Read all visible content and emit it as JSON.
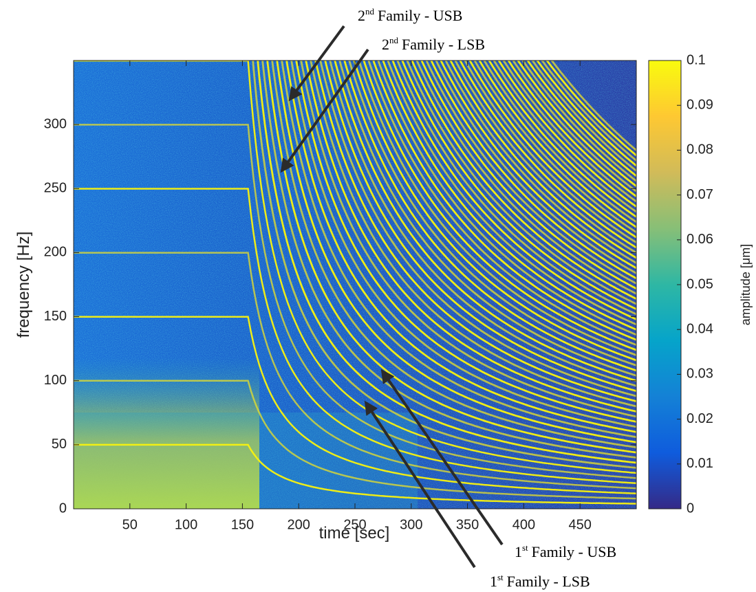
{
  "chart_data": {
    "type": "spectrogram",
    "xlabel": "time [sec]",
    "ylabel": "frequency [Hz]",
    "xlim": [
      0,
      500
    ],
    "ylim": [
      0,
      350
    ],
    "xticks": [
      50,
      100,
      150,
      200,
      250,
      300,
      350,
      400,
      450
    ],
    "yticks": [
      0,
      50,
      100,
      150,
      200,
      250,
      300
    ],
    "grid": false,
    "colorbar": {
      "label": "amplitude [μm]",
      "lim": [
        0,
        0.1
      ],
      "ticks": [
        0,
        0.01,
        0.02,
        0.03,
        0.04,
        0.05,
        0.06,
        0.07,
        0.08,
        0.09,
        0.1
      ],
      "colormap": [
        "#352a87",
        "#0f5cdd",
        "#1481d6",
        "#06a4ca",
        "#2eb7a4",
        "#87bf77",
        "#d1bb59",
        "#fec832",
        "#f9fb0e"
      ]
    },
    "annotations": [
      {
        "ordinal": "2",
        "suffix": "nd",
        "text": "Family - USB"
      },
      {
        "ordinal": "2",
        "suffix": "nd",
        "text": "Family - LSB"
      },
      {
        "ordinal": "1",
        "suffix": "st",
        "text": "Family - USB"
      },
      {
        "ordinal": "1",
        "suffix": "st",
        "text": "Family - LSB"
      }
    ]
  }
}
